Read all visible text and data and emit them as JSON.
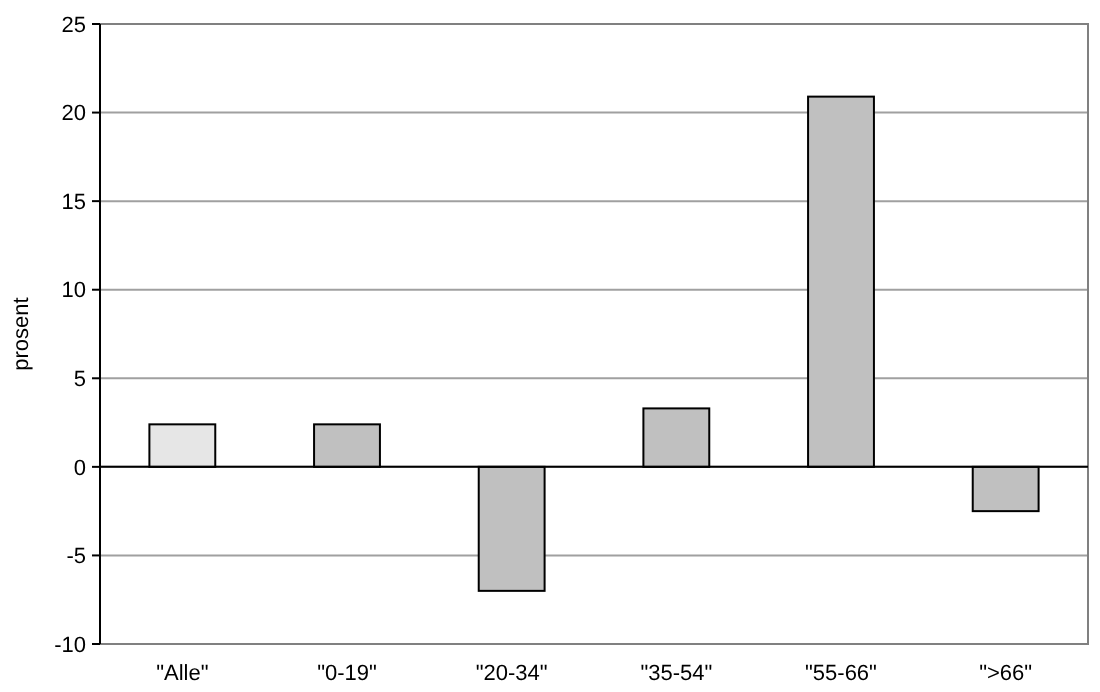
{
  "chart_data": {
    "type": "bar",
    "ylabel": "prosent",
    "categories": [
      "\"Alle\"",
      "\"0-19\"",
      "\"20-34\"",
      "\"35-54\"",
      "\"55-66\"",
      "\">66\""
    ],
    "values": [
      2.4,
      2.4,
      -7.0,
      3.3,
      20.9,
      -2.5
    ],
    "colors": [
      "#e6e6e6",
      "#c0c0c0",
      "#c0c0c0",
      "#c0c0c0",
      "#c0c0c0",
      "#c0c0c0"
    ],
    "ylim": [
      -10,
      25
    ],
    "yticks": [
      -10,
      -5,
      0,
      5,
      10,
      15,
      20,
      25
    ],
    "grid": "y"
  }
}
